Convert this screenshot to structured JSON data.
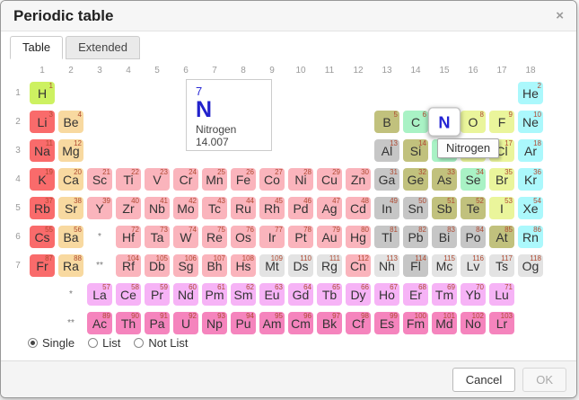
{
  "dialog": {
    "title": "Periodic table",
    "close_glyph": "×"
  },
  "tabs": [
    {
      "label": "Table",
      "active": true
    },
    {
      "label": "Extended",
      "active": false
    }
  ],
  "table": {
    "group_labels": [
      "1",
      "2",
      "3",
      "4",
      "5",
      "6",
      "7",
      "8",
      "9",
      "10",
      "11",
      "12",
      "13",
      "14",
      "15",
      "16",
      "17",
      "18"
    ],
    "period_labels": [
      "1",
      "2",
      "3",
      "4",
      "5",
      "6",
      "7"
    ],
    "atomic_number_color": "#b04a32",
    "category_colors": {
      "hy": "#cdf161",
      "ak": "#f96b6b",
      "ae": "#f8d9a0",
      "tm": "#fab4bc",
      "pt": "#c6c6c6",
      "md": "#c1c17d",
      "nm": "#a9f2c5",
      "hl": "#eaf59b",
      "ng": "#abf8fc",
      "la": "#f6b3f6",
      "ac": "#f584bd",
      "un": "#e3e3e3",
      "sel": "#ffffff"
    },
    "markers": [
      {
        "r": 6,
        "c": 3,
        "t": "*"
      },
      {
        "r": 7,
        "c": 3,
        "t": "**"
      },
      {
        "r": 8,
        "c": 2,
        "t": "*"
      },
      {
        "r": 9,
        "c": 2,
        "t": "**"
      }
    ],
    "elements": [
      {
        "n": 1,
        "s": "H",
        "r": 1,
        "c": 1,
        "t": "hy"
      },
      {
        "n": 2,
        "s": "He",
        "r": 1,
        "c": 18,
        "t": "ng"
      },
      {
        "n": 3,
        "s": "Li",
        "r": 2,
        "c": 1,
        "t": "ak"
      },
      {
        "n": 4,
        "s": "Be",
        "r": 2,
        "c": 2,
        "t": "ae"
      },
      {
        "n": 5,
        "s": "B",
        "r": 2,
        "c": 13,
        "t": "md"
      },
      {
        "n": 6,
        "s": "C",
        "r": 2,
        "c": 14,
        "t": "nm"
      },
      {
        "n": 7,
        "s": "N",
        "r": 2,
        "c": 15,
        "t": "sel"
      },
      {
        "n": 8,
        "s": "O",
        "r": 2,
        "c": 16,
        "t": "hl"
      },
      {
        "n": 9,
        "s": "F",
        "r": 2,
        "c": 17,
        "t": "hl"
      },
      {
        "n": 10,
        "s": "Ne",
        "r": 2,
        "c": 18,
        "t": "ng"
      },
      {
        "n": 11,
        "s": "Na",
        "r": 3,
        "c": 1,
        "t": "ak"
      },
      {
        "n": 12,
        "s": "Mg",
        "r": 3,
        "c": 2,
        "t": "ae"
      },
      {
        "n": 13,
        "s": "Al",
        "r": 3,
        "c": 13,
        "t": "pt"
      },
      {
        "n": 14,
        "s": "Si",
        "r": 3,
        "c": 14,
        "t": "md"
      },
      {
        "n": 15,
        "s": "P",
        "r": 3,
        "c": 15,
        "t": "nm"
      },
      {
        "n": 16,
        "s": "S",
        "r": 3,
        "c": 16,
        "t": "hl"
      },
      {
        "n": 17,
        "s": "Cl",
        "r": 3,
        "c": 17,
        "t": "hl"
      },
      {
        "n": 18,
        "s": "Ar",
        "r": 3,
        "c": 18,
        "t": "ng"
      },
      {
        "n": 19,
        "s": "K",
        "r": 4,
        "c": 1,
        "t": "ak"
      },
      {
        "n": 20,
        "s": "Ca",
        "r": 4,
        "c": 2,
        "t": "ae"
      },
      {
        "n": 21,
        "s": "Sc",
        "r": 4,
        "c": 3,
        "t": "tm"
      },
      {
        "n": 22,
        "s": "Ti",
        "r": 4,
        "c": 4,
        "t": "tm"
      },
      {
        "n": 23,
        "s": "V",
        "r": 4,
        "c": 5,
        "t": "tm"
      },
      {
        "n": 24,
        "s": "Cr",
        "r": 4,
        "c": 6,
        "t": "tm"
      },
      {
        "n": 25,
        "s": "Mn",
        "r": 4,
        "c": 7,
        "t": "tm"
      },
      {
        "n": 26,
        "s": "Fe",
        "r": 4,
        "c": 8,
        "t": "tm"
      },
      {
        "n": 27,
        "s": "Co",
        "r": 4,
        "c": 9,
        "t": "tm"
      },
      {
        "n": 28,
        "s": "Ni",
        "r": 4,
        "c": 10,
        "t": "tm"
      },
      {
        "n": 29,
        "s": "Cu",
        "r": 4,
        "c": 11,
        "t": "tm"
      },
      {
        "n": 30,
        "s": "Zn",
        "r": 4,
        "c": 12,
        "t": "tm"
      },
      {
        "n": 31,
        "s": "Ga",
        "r": 4,
        "c": 13,
        "t": "pt"
      },
      {
        "n": 32,
        "s": "Ge",
        "r": 4,
        "c": 14,
        "t": "md"
      },
      {
        "n": 33,
        "s": "As",
        "r": 4,
        "c": 15,
        "t": "md"
      },
      {
        "n": 34,
        "s": "Se",
        "r": 4,
        "c": 16,
        "t": "nm"
      },
      {
        "n": 35,
        "s": "Br",
        "r": 4,
        "c": 17,
        "t": "hl"
      },
      {
        "n": 36,
        "s": "Kr",
        "r": 4,
        "c": 18,
        "t": "ng"
      },
      {
        "n": 37,
        "s": "Rb",
        "r": 5,
        "c": 1,
        "t": "ak"
      },
      {
        "n": 38,
        "s": "Sr",
        "r": 5,
        "c": 2,
        "t": "ae"
      },
      {
        "n": 39,
        "s": "Y",
        "r": 5,
        "c": 3,
        "t": "tm"
      },
      {
        "n": 40,
        "s": "Zr",
        "r": 5,
        "c": 4,
        "t": "tm"
      },
      {
        "n": 41,
        "s": "Nb",
        "r": 5,
        "c": 5,
        "t": "tm"
      },
      {
        "n": 42,
        "s": "Mo",
        "r": 5,
        "c": 6,
        "t": "tm"
      },
      {
        "n": 43,
        "s": "Tc",
        "r": 5,
        "c": 7,
        "t": "tm"
      },
      {
        "n": 44,
        "s": "Ru",
        "r": 5,
        "c": 8,
        "t": "tm"
      },
      {
        "n": 45,
        "s": "Rh",
        "r": 5,
        "c": 9,
        "t": "tm"
      },
      {
        "n": 46,
        "s": "Pd",
        "r": 5,
        "c": 10,
        "t": "tm"
      },
      {
        "n": 47,
        "s": "Ag",
        "r": 5,
        "c": 11,
        "t": "tm"
      },
      {
        "n": 48,
        "s": "Cd",
        "r": 5,
        "c": 12,
        "t": "tm"
      },
      {
        "n": 49,
        "s": "In",
        "r": 5,
        "c": 13,
        "t": "pt"
      },
      {
        "n": 50,
        "s": "Sn",
        "r": 5,
        "c": 14,
        "t": "pt"
      },
      {
        "n": 51,
        "s": "Sb",
        "r": 5,
        "c": 15,
        "t": "md"
      },
      {
        "n": 52,
        "s": "Te",
        "r": 5,
        "c": 16,
        "t": "md"
      },
      {
        "n": 53,
        "s": "I",
        "r": 5,
        "c": 17,
        "t": "hl"
      },
      {
        "n": 54,
        "s": "Xe",
        "r": 5,
        "c": 18,
        "t": "ng"
      },
      {
        "n": 55,
        "s": "Cs",
        "r": 6,
        "c": 1,
        "t": "ak"
      },
      {
        "n": 56,
        "s": "Ba",
        "r": 6,
        "c": 2,
        "t": "ae"
      },
      {
        "n": 72,
        "s": "Hf",
        "r": 6,
        "c": 4,
        "t": "tm"
      },
      {
        "n": 73,
        "s": "Ta",
        "r": 6,
        "c": 5,
        "t": "tm"
      },
      {
        "n": 74,
        "s": "W",
        "r": 6,
        "c": 6,
        "t": "tm"
      },
      {
        "n": 75,
        "s": "Re",
        "r": 6,
        "c": 7,
        "t": "tm"
      },
      {
        "n": 76,
        "s": "Os",
        "r": 6,
        "c": 8,
        "t": "tm"
      },
      {
        "n": 77,
        "s": "Ir",
        "r": 6,
        "c": 9,
        "t": "tm"
      },
      {
        "n": 78,
        "s": "Pt",
        "r": 6,
        "c": 10,
        "t": "tm"
      },
      {
        "n": 79,
        "s": "Au",
        "r": 6,
        "c": 11,
        "t": "tm"
      },
      {
        "n": 80,
        "s": "Hg",
        "r": 6,
        "c": 12,
        "t": "tm"
      },
      {
        "n": 81,
        "s": "Tl",
        "r": 6,
        "c": 13,
        "t": "pt"
      },
      {
        "n": 82,
        "s": "Pb",
        "r": 6,
        "c": 14,
        "t": "pt"
      },
      {
        "n": 83,
        "s": "Bi",
        "r": 6,
        "c": 15,
        "t": "pt"
      },
      {
        "n": 84,
        "s": "Po",
        "r": 6,
        "c": 16,
        "t": "pt"
      },
      {
        "n": 85,
        "s": "At",
        "r": 6,
        "c": 17,
        "t": "md"
      },
      {
        "n": 86,
        "s": "Rn",
        "r": 6,
        "c": 18,
        "t": "ng"
      },
      {
        "n": 87,
        "s": "Fr",
        "r": 7,
        "c": 1,
        "t": "ak"
      },
      {
        "n": 88,
        "s": "Ra",
        "r": 7,
        "c": 2,
        "t": "ae"
      },
      {
        "n": 104,
        "s": "Rf",
        "r": 7,
        "c": 4,
        "t": "tm"
      },
      {
        "n": 105,
        "s": "Db",
        "r": 7,
        "c": 5,
        "t": "tm"
      },
      {
        "n": 106,
        "s": "Sg",
        "r": 7,
        "c": 6,
        "t": "tm"
      },
      {
        "n": 107,
        "s": "Bh",
        "r": 7,
        "c": 7,
        "t": "tm"
      },
      {
        "n": 108,
        "s": "Hs",
        "r": 7,
        "c": 8,
        "t": "tm"
      },
      {
        "n": 109,
        "s": "Mt",
        "r": 7,
        "c": 9,
        "t": "un"
      },
      {
        "n": 110,
        "s": "Ds",
        "r": 7,
        "c": 10,
        "t": "un"
      },
      {
        "n": 111,
        "s": "Rg",
        "r": 7,
        "c": 11,
        "t": "un"
      },
      {
        "n": 112,
        "s": "Cn",
        "r": 7,
        "c": 12,
        "t": "tm"
      },
      {
        "n": 113,
        "s": "Nh",
        "r": 7,
        "c": 13,
        "t": "un"
      },
      {
        "n": 114,
        "s": "Fl",
        "r": 7,
        "c": 14,
        "t": "pt"
      },
      {
        "n": 115,
        "s": "Mc",
        "r": 7,
        "c": 15,
        "t": "un"
      },
      {
        "n": 116,
        "s": "Lv",
        "r": 7,
        "c": 16,
        "t": "un"
      },
      {
        "n": 117,
        "s": "Ts",
        "r": 7,
        "c": 17,
        "t": "un"
      },
      {
        "n": 118,
        "s": "Og",
        "r": 7,
        "c": 18,
        "t": "un"
      },
      {
        "n": 57,
        "s": "La",
        "r": 8,
        "c": 3,
        "t": "la"
      },
      {
        "n": 58,
        "s": "Ce",
        "r": 8,
        "c": 4,
        "t": "la"
      },
      {
        "n": 59,
        "s": "Pr",
        "r": 8,
        "c": 5,
        "t": "la"
      },
      {
        "n": 60,
        "s": "Nd",
        "r": 8,
        "c": 6,
        "t": "la"
      },
      {
        "n": 61,
        "s": "Pm",
        "r": 8,
        "c": 7,
        "t": "la"
      },
      {
        "n": 62,
        "s": "Sm",
        "r": 8,
        "c": 8,
        "t": "la"
      },
      {
        "n": 63,
        "s": "Eu",
        "r": 8,
        "c": 9,
        "t": "la"
      },
      {
        "n": 64,
        "s": "Gd",
        "r": 8,
        "c": 10,
        "t": "la"
      },
      {
        "n": 65,
        "s": "Tb",
        "r": 8,
        "c": 11,
        "t": "la"
      },
      {
        "n": 66,
        "s": "Dy",
        "r": 8,
        "c": 12,
        "t": "la"
      },
      {
        "n": 67,
        "s": "Ho",
        "r": 8,
        "c": 13,
        "t": "la"
      },
      {
        "n": 68,
        "s": "Er",
        "r": 8,
        "c": 14,
        "t": "la"
      },
      {
        "n": 69,
        "s": "Tm",
        "r": 8,
        "c": 15,
        "t": "la"
      },
      {
        "n": 70,
        "s": "Yb",
        "r": 8,
        "c": 16,
        "t": "la"
      },
      {
        "n": 71,
        "s": "Lu",
        "r": 8,
        "c": 17,
        "t": "la"
      },
      {
        "n": 89,
        "s": "Ac",
        "r": 9,
        "c": 3,
        "t": "ac"
      },
      {
        "n": 90,
        "s": "Th",
        "r": 9,
        "c": 4,
        "t": "ac"
      },
      {
        "n": 91,
        "s": "Pa",
        "r": 9,
        "c": 5,
        "t": "ac"
      },
      {
        "n": 92,
        "s": "U",
        "r": 9,
        "c": 6,
        "t": "ac"
      },
      {
        "n": 93,
        "s": "Np",
        "r": 9,
        "c": 7,
        "t": "ac"
      },
      {
        "n": 94,
        "s": "Pu",
        "r": 9,
        "c": 8,
        "t": "ac"
      },
      {
        "n": 95,
        "s": "Am",
        "r": 9,
        "c": 9,
        "t": "ac"
      },
      {
        "n": 96,
        "s": "Cm",
        "r": 9,
        "c": 10,
        "t": "ac"
      },
      {
        "n": 97,
        "s": "Bk",
        "r": 9,
        "c": 11,
        "t": "ac"
      },
      {
        "n": 98,
        "s": "Cf",
        "r": 9,
        "c": 12,
        "t": "ac"
      },
      {
        "n": 99,
        "s": "Es",
        "r": 9,
        "c": 13,
        "t": "ac"
      },
      {
        "n": 100,
        "s": "Fm",
        "r": 9,
        "c": 14,
        "t": "ac"
      },
      {
        "n": 101,
        "s": "Md",
        "r": 9,
        "c": 15,
        "t": "ac"
      },
      {
        "n": 102,
        "s": "No",
        "r": 9,
        "c": 16,
        "t": "ac"
      },
      {
        "n": 103,
        "s": "Lr",
        "r": 9,
        "c": 17,
        "t": "ac"
      }
    ]
  },
  "info_box": {
    "number": "7",
    "symbol": "N",
    "name": "Nitrogen",
    "mass": "14.007"
  },
  "tooltip": {
    "text": "Nitrogen"
  },
  "selection_modes": [
    {
      "label": "Single",
      "selected": true
    },
    {
      "label": "List",
      "selected": false
    },
    {
      "label": "Not List",
      "selected": false
    }
  ],
  "footer": {
    "cancel_label": "Cancel",
    "ok_label": "OK",
    "ok_disabled": true
  }
}
